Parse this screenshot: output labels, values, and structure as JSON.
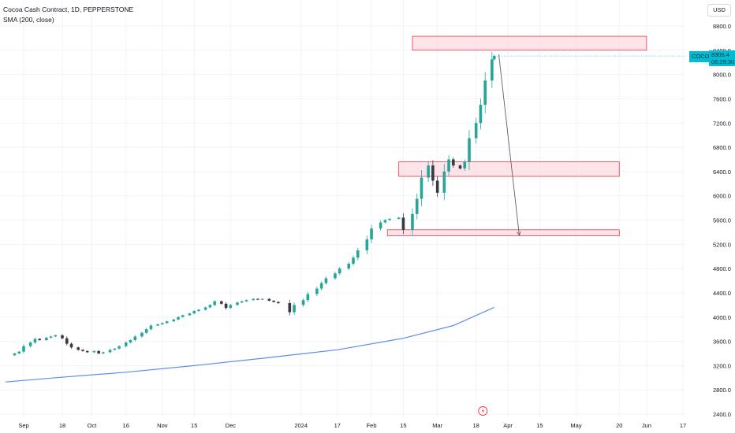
{
  "legend": {
    "title": "Cocoa Cash Contract, 1D, PEPPERSTONE",
    "indicator": "SMA (200, close)"
  },
  "currency_button": "USD",
  "last_price": {
    "symbol": "COCOA",
    "value": "8305.4",
    "countdown": "06:29:30",
    "color": "#00bcd4"
  },
  "colors": {
    "up": "#26a69a",
    "up_accent": "#00bcd4",
    "down": "#363a45",
    "sma": "#5b8def",
    "zone_fill": "#ffcdd7",
    "zone_border": "#f23645",
    "arrow": "#5d606b",
    "event_icon": "#f23645"
  },
  "chart_data": {
    "type": "candlestick",
    "title": "Cocoa Cash Contract, 1D, PEPPERSTONE",
    "y_ticks": [
      2400,
      2800,
      3200,
      3600,
      4000,
      4400,
      4800,
      5200,
      5600,
      6000,
      6400,
      6800,
      7200,
      7600,
      8000,
      8400,
      8800
    ],
    "x_ticks": [
      {
        "label": "Sep",
        "date": "2023-09-01"
      },
      {
        "label": "18",
        "date": "2023-09-18"
      },
      {
        "label": "Oct",
        "date": "2023-10-01"
      },
      {
        "label": "16",
        "date": "2023-10-16"
      },
      {
        "label": "Nov",
        "date": "2023-11-01"
      },
      {
        "label": "15",
        "date": "2023-11-15"
      },
      {
        "label": "Dec",
        "date": "2023-12-01"
      },
      {
        "label": "2024",
        "date": "2024-01-01"
      },
      {
        "label": "17",
        "date": "2024-01-17"
      },
      {
        "label": "Feb",
        "date": "2024-02-01"
      },
      {
        "label": "15",
        "date": "2024-02-15"
      },
      {
        "label": "Mar",
        "date": "2024-03-01"
      },
      {
        "label": "18",
        "date": "2024-03-18"
      },
      {
        "label": "Apr",
        "date": "2024-04-01"
      },
      {
        "label": "15",
        "date": "2024-04-15"
      },
      {
        "label": "May",
        "date": "2024-05-01"
      },
      {
        "label": "20",
        "date": "2024-05-20"
      },
      {
        "label": "Jun",
        "date": "2024-06-01"
      },
      {
        "label": "17",
        "date": "2024-06-17"
      }
    ],
    "y_range": [
      2300,
      9000
    ],
    "candles_close": [
      [
        "2023-08-28",
        3400
      ],
      [
        "2023-08-30",
        3430
      ],
      [
        "2023-09-01",
        3520
      ],
      [
        "2023-09-04",
        3580
      ],
      [
        "2023-09-06",
        3640
      ],
      [
        "2023-09-08",
        3620
      ],
      [
        "2023-09-11",
        3660
      ],
      [
        "2023-09-13",
        3680
      ],
      [
        "2023-09-15",
        3700
      ],
      [
        "2023-09-18",
        3650
      ],
      [
        "2023-09-20",
        3560
      ],
      [
        "2023-09-22",
        3500
      ],
      [
        "2023-09-25",
        3460
      ],
      [
        "2023-09-27",
        3440
      ],
      [
        "2023-09-29",
        3420
      ],
      [
        "2023-10-02",
        3440
      ],
      [
        "2023-10-04",
        3400
      ],
      [
        "2023-10-06",
        3420
      ],
      [
        "2023-10-09",
        3460
      ],
      [
        "2023-10-11",
        3480
      ],
      [
        "2023-10-13",
        3520
      ],
      [
        "2023-10-16",
        3580
      ],
      [
        "2023-10-18",
        3620
      ],
      [
        "2023-10-20",
        3680
      ],
      [
        "2023-10-23",
        3740
      ],
      [
        "2023-10-25",
        3800
      ],
      [
        "2023-10-27",
        3860
      ],
      [
        "2023-10-30",
        3880
      ],
      [
        "2023-11-01",
        3900
      ],
      [
        "2023-11-03",
        3930
      ],
      [
        "2023-11-06",
        3960
      ],
      [
        "2023-11-08",
        4000
      ],
      [
        "2023-11-10",
        4030
      ],
      [
        "2023-11-13",
        4060
      ],
      [
        "2023-11-15",
        4100
      ],
      [
        "2023-11-17",
        4120
      ],
      [
        "2023-11-20",
        4160
      ],
      [
        "2023-11-22",
        4200
      ],
      [
        "2023-11-24",
        4260
      ],
      [
        "2023-11-27",
        4220
      ],
      [
        "2023-11-29",
        4150
      ],
      [
        "2023-12-01",
        4200
      ],
      [
        "2023-12-04",
        4240
      ],
      [
        "2023-12-06",
        4260
      ],
      [
        "2023-12-08",
        4280
      ],
      [
        "2023-12-11",
        4300
      ],
      [
        "2023-12-13",
        4290
      ],
      [
        "2023-12-15",
        4300
      ],
      [
        "2023-12-18",
        4270
      ],
      [
        "2023-12-20",
        4250
      ],
      [
        "2023-12-22",
        4230
      ],
      [
        "2023-12-27",
        4080
      ],
      [
        "2023-12-29",
        4200
      ],
      [
        "2024-01-02",
        4280
      ],
      [
        "2024-01-04",
        4380
      ],
      [
        "2024-01-08",
        4470
      ],
      [
        "2024-01-10",
        4560
      ],
      [
        "2024-01-12",
        4640
      ],
      [
        "2024-01-16",
        4720
      ],
      [
        "2024-01-18",
        4800
      ],
      [
        "2024-01-22",
        4880
      ],
      [
        "2024-01-24",
        4980
      ],
      [
        "2024-01-26",
        5100
      ],
      [
        "2024-01-30",
        5280
      ],
      [
        "2024-02-01",
        5460
      ],
      [
        "2024-02-05",
        5560
      ],
      [
        "2024-02-07",
        5600
      ],
      [
        "2024-02-09",
        5620
      ],
      [
        "2024-02-13",
        5640
      ],
      [
        "2024-02-15",
        5440
      ],
      [
        "2024-02-19",
        5700
      ],
      [
        "2024-02-21",
        5950
      ],
      [
        "2024-02-23",
        6300
      ],
      [
        "2024-02-26",
        6500
      ],
      [
        "2024-02-28",
        6250
      ],
      [
        "2024-03-01",
        6050
      ],
      [
        "2024-03-04",
        6400
      ],
      [
        "2024-03-06",
        6600
      ],
      [
        "2024-03-08",
        6500
      ],
      [
        "2024-03-11",
        6450
      ],
      [
        "2024-03-13",
        6560
      ],
      [
        "2024-03-15",
        6950
      ],
      [
        "2024-03-18",
        7200
      ],
      [
        "2024-03-20",
        7500
      ],
      [
        "2024-03-22",
        7900
      ],
      [
        "2024-03-25",
        8250
      ],
      [
        "2024-03-26",
        8305.4
      ]
    ],
    "sma_200": [
      [
        "2023-08-24",
        2930
      ],
      [
        "2023-09-15",
        3000
      ],
      [
        "2023-10-16",
        3090
      ],
      [
        "2023-11-15",
        3200
      ],
      [
        "2023-12-15",
        3320
      ],
      [
        "2024-01-17",
        3460
      ],
      [
        "2024-02-15",
        3650
      ],
      [
        "2024-03-08",
        3860
      ],
      [
        "2024-03-26",
        4160
      ]
    ],
    "zones": [
      {
        "from": "2024-02-19",
        "to": "2024-06-01",
        "high": 8630,
        "low": 8400
      },
      {
        "from": "2024-02-13",
        "to": "2024-05-20",
        "high": 6560,
        "low": 6320
      },
      {
        "from": "2024-02-08",
        "to": "2024-05-20",
        "high": 5440,
        "low": 5340
      }
    ],
    "projection_arrow": {
      "from": [
        "2024-03-28",
        8330
      ],
      "to": [
        "2024-04-06",
        5350
      ]
    }
  }
}
